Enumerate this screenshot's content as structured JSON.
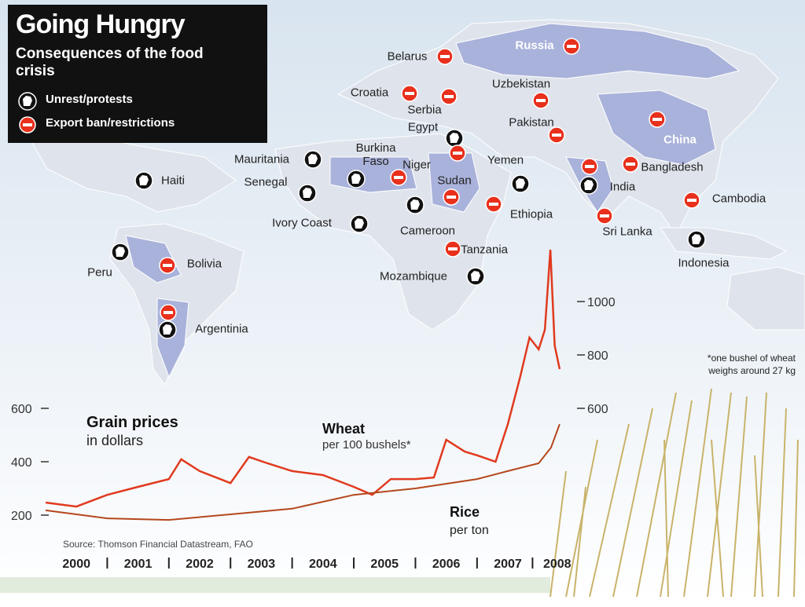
{
  "header": {
    "title": "Going Hungry",
    "subtitle": "Consequences of the food crisis"
  },
  "legend": [
    {
      "kind": "unrest",
      "label": "Unrest/protests"
    },
    {
      "kind": "ban",
      "label": "Export ban/restrictions"
    }
  ],
  "countries": [
    {
      "name": "Belarus",
      "markers": [
        "ban"
      ]
    },
    {
      "name": "Russia",
      "markers": [
        "ban"
      ]
    },
    {
      "name": "Croatia",
      "markers": [
        "ban"
      ]
    },
    {
      "name": "Serbia",
      "markers": [
        "ban"
      ]
    },
    {
      "name": "Uzbekistan",
      "markers": [
        "ban"
      ]
    },
    {
      "name": "Egypt",
      "markers": [
        "unrest",
        "ban"
      ]
    },
    {
      "name": "Pakistan",
      "markers": [
        "ban"
      ]
    },
    {
      "name": "China",
      "markers": [
        "ban"
      ]
    },
    {
      "name": "Mauritania",
      "markers": [
        "unrest"
      ]
    },
    {
      "name": "Burkina Faso",
      "markers": [
        "unrest"
      ]
    },
    {
      "name": "Niger",
      "markers": [
        "ban"
      ]
    },
    {
      "name": "Yemen",
      "markers": [
        "unrest"
      ]
    },
    {
      "name": "Haiti",
      "markers": [
        "unrest"
      ]
    },
    {
      "name": "Senegal",
      "markers": [
        "unrest"
      ]
    },
    {
      "name": "Sudan",
      "markers": [
        "ban"
      ]
    },
    {
      "name": "India",
      "markers": [
        "unrest",
        "ban"
      ]
    },
    {
      "name": "Bangladesh",
      "markers": [
        "ban"
      ]
    },
    {
      "name": "Cambodia",
      "markers": [
        "ban"
      ]
    },
    {
      "name": "Ethiopia",
      "markers": [
        "ban"
      ]
    },
    {
      "name": "Cameroon",
      "markers": [
        "unrest"
      ]
    },
    {
      "name": "Ivory Coast",
      "markers": [
        "unrest"
      ]
    },
    {
      "name": "Sri Lanka",
      "markers": [
        "ban"
      ]
    },
    {
      "name": "Indonesia",
      "markers": [
        "unrest"
      ]
    },
    {
      "name": "Tanzania",
      "markers": [
        "ban"
      ]
    },
    {
      "name": "Mozambique",
      "markers": [
        "unrest"
      ]
    },
    {
      "name": "Peru",
      "markers": [
        "unrest"
      ]
    },
    {
      "name": "Bolivia",
      "markers": [
        "ban"
      ]
    },
    {
      "name": "Argentinia",
      "markers": [
        "unrest",
        "ban"
      ]
    }
  ],
  "chart_data": {
    "type": "line",
    "title": "Grain prices",
    "subtitle": "in dollars",
    "source": "Source: Thomson Financial Datastream, FAO",
    "footnote": "*one bushel of wheat weighs around 27 kg",
    "xlim": [
      2000,
      2008.4
    ],
    "xticks": [
      {
        "value": 2000.5,
        "label": "2000"
      },
      {
        "value": 2001.5,
        "label": "2001"
      },
      {
        "value": 2002.5,
        "label": "2002"
      },
      {
        "value": 2003.5,
        "label": "2003"
      },
      {
        "value": 2004.5,
        "label": "2004"
      },
      {
        "value": 2005.5,
        "label": "2005"
      },
      {
        "value": 2006.5,
        "label": "2006"
      },
      {
        "value": 2007.5,
        "label": "2007"
      },
      {
        "value": 2008.3,
        "label": "2008"
      }
    ],
    "ylim": [
      150,
      1250
    ],
    "yticks": [
      200,
      400,
      600
    ],
    "y2lim": [
      150,
      1250
    ],
    "y2ticks": [
      600,
      800,
      1000
    ],
    "series": [
      {
        "name": "Wheat",
        "note": "per 100 bushels*",
        "color": "#e03a1e",
        "axis": "y2",
        "x": [
          2000,
          2000.5,
          2001,
          2001.5,
          2002,
          2002.2,
          2002.5,
          2003,
          2003.3,
          2003.6,
          2004,
          2004.5,
          2005,
          2005.3,
          2005.6,
          2006,
          2006.3,
          2006.5,
          2006.8,
          2007,
          2007.3,
          2007.5,
          2007.7,
          2007.85,
          2008,
          2008.1,
          2008.19,
          2008.26,
          2008.34
        ],
        "values": [
          247,
          232,
          276,
          306,
          335,
          409,
          365,
          320,
          418,
          394,
          365,
          350,
          306,
          276,
          335,
          335,
          341,
          482,
          438,
          424,
          400,
          541,
          718,
          865,
          821,
          894,
          1194,
          835,
          747
        ]
      },
      {
        "name": "Rice",
        "note": "per ton",
        "color": "#b5471c",
        "x": [
          2000,
          2001,
          2002,
          2003,
          2004,
          2005,
          2006,
          2007,
          2007.5,
          2008,
          2008.2,
          2008.34
        ],
        "values": [
          218,
          188,
          182,
          203,
          224,
          276,
          300,
          335,
          365,
          394,
          453,
          541
        ]
      }
    ]
  }
}
